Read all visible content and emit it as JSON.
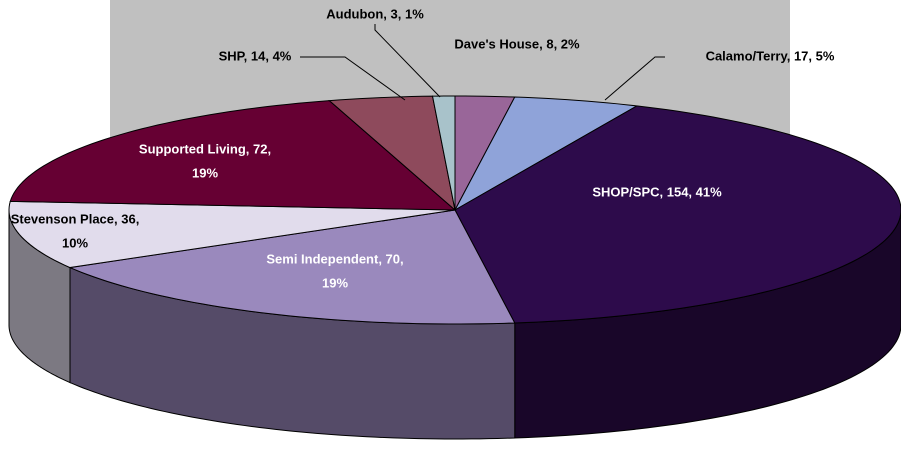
{
  "chart_data": {
    "type": "pie",
    "categories": [
      "Dave's House",
      "Calamo/Terry",
      "SHOP/SPC",
      "Semi Independent",
      "Stevenson Place",
      "Supported Living",
      "SHP",
      "Audubon"
    ],
    "values": [
      8,
      17,
      154,
      70,
      36,
      72,
      14,
      3
    ],
    "value_labels": [
      [
        "Dave's House, 8, 2%"
      ],
      [
        "Calamo/Terry, 17, 5%"
      ],
      [
        "SHOP/SPC, 154, 41%"
      ],
      [
        "Semi Independent, 70,",
        "19%"
      ],
      [
        "Stevenson Place, 36,",
        "10%"
      ],
      [
        "Supported Living, 72,",
        "19%"
      ],
      [
        "SHP, 14, 4%"
      ],
      [
        "Audubon, 3, 1%"
      ]
    ],
    "colors": [
      "#996699",
      "#8fa3d9",
      "#2d0b4b",
      "#9a89bd",
      "#e1dcec",
      "#660033",
      "#8e4a5c",
      "#a8c2ca"
    ],
    "label_colors": [
      "#000000",
      "#000000",
      "#ffffff",
      "#ffffff",
      "#000000",
      "#ffffff",
      "#000000",
      "#000000"
    ]
  }
}
